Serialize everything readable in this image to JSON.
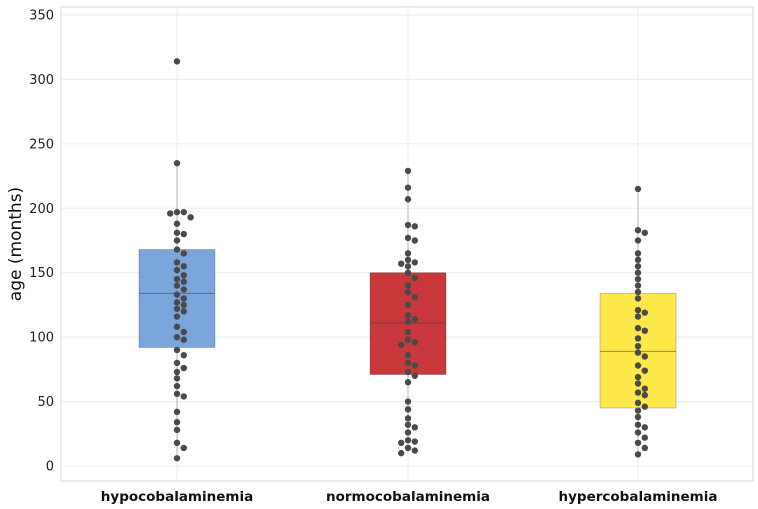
{
  "chart_data": {
    "type": "box",
    "title": "",
    "xlabel": "",
    "ylabel": "age (months)",
    "ylim": [
      -12,
      356
    ],
    "yticks": [
      0,
      50,
      100,
      150,
      200,
      250,
      300,
      350
    ],
    "ytick_labels": [
      "0",
      "50",
      "100",
      "150",
      "200",
      "250",
      "300",
      "350"
    ],
    "grid": true,
    "legend": "none",
    "categories": [
      "hypocobalaminemia",
      "normocobalaminemia",
      "hypercobalaminemia"
    ],
    "boxes": [
      {
        "category": "hypocobalaminemia",
        "color": "#7aa6dc",
        "q1": 92,
        "median": 134,
        "q3": 168,
        "whisker_low": 6,
        "whisker_high": 235,
        "points": [
          314,
          235,
          197,
          197,
          196,
          193,
          188,
          181,
          180,
          175,
          168,
          165,
          158,
          155,
          152,
          148,
          145,
          143,
          140,
          137,
          133,
          130,
          127,
          125,
          122,
          120,
          116,
          108,
          104,
          100,
          98,
          90,
          86,
          80,
          76,
          73,
          68,
          62,
          56,
          54,
          42,
          34,
          28,
          18,
          14,
          6
        ]
      },
      {
        "category": "normocobalaminemia",
        "color": "#c9393b",
        "q1": 71,
        "median": 111,
        "q3": 150,
        "whisker_low": 10,
        "whisker_high": 229,
        "points": [
          229,
          216,
          207,
          187,
          186,
          177,
          175,
          165,
          160,
          158,
          157,
          155,
          150,
          146,
          140,
          135,
          131,
          125,
          117,
          114,
          112,
          104,
          98,
          96,
          94,
          86,
          80,
          78,
          73,
          70,
          65,
          50,
          44,
          37,
          32,
          30,
          26,
          20,
          19,
          18,
          14,
          12,
          10
        ]
      },
      {
        "category": "hypercobalaminemia",
        "color": "#ffe84a",
        "q1": 45,
        "median": 89,
        "q3": 134,
        "whisker_low": 9,
        "whisker_high": 215,
        "points": [
          215,
          183,
          181,
          175,
          165,
          160,
          155,
          150,
          145,
          140,
          135,
          130,
          121,
          119,
          116,
          107,
          105,
          99,
          93,
          88,
          85,
          78,
          74,
          69,
          64,
          60,
          57,
          55,
          49,
          46,
          43,
          38,
          32,
          30,
          26,
          22,
          18,
          14,
          9
        ]
      }
    ]
  },
  "colors": {
    "point": "#4a4a4a",
    "grid": "#ececec",
    "frame": "#d6d6d6",
    "whisker": "#b5b5b5"
  }
}
